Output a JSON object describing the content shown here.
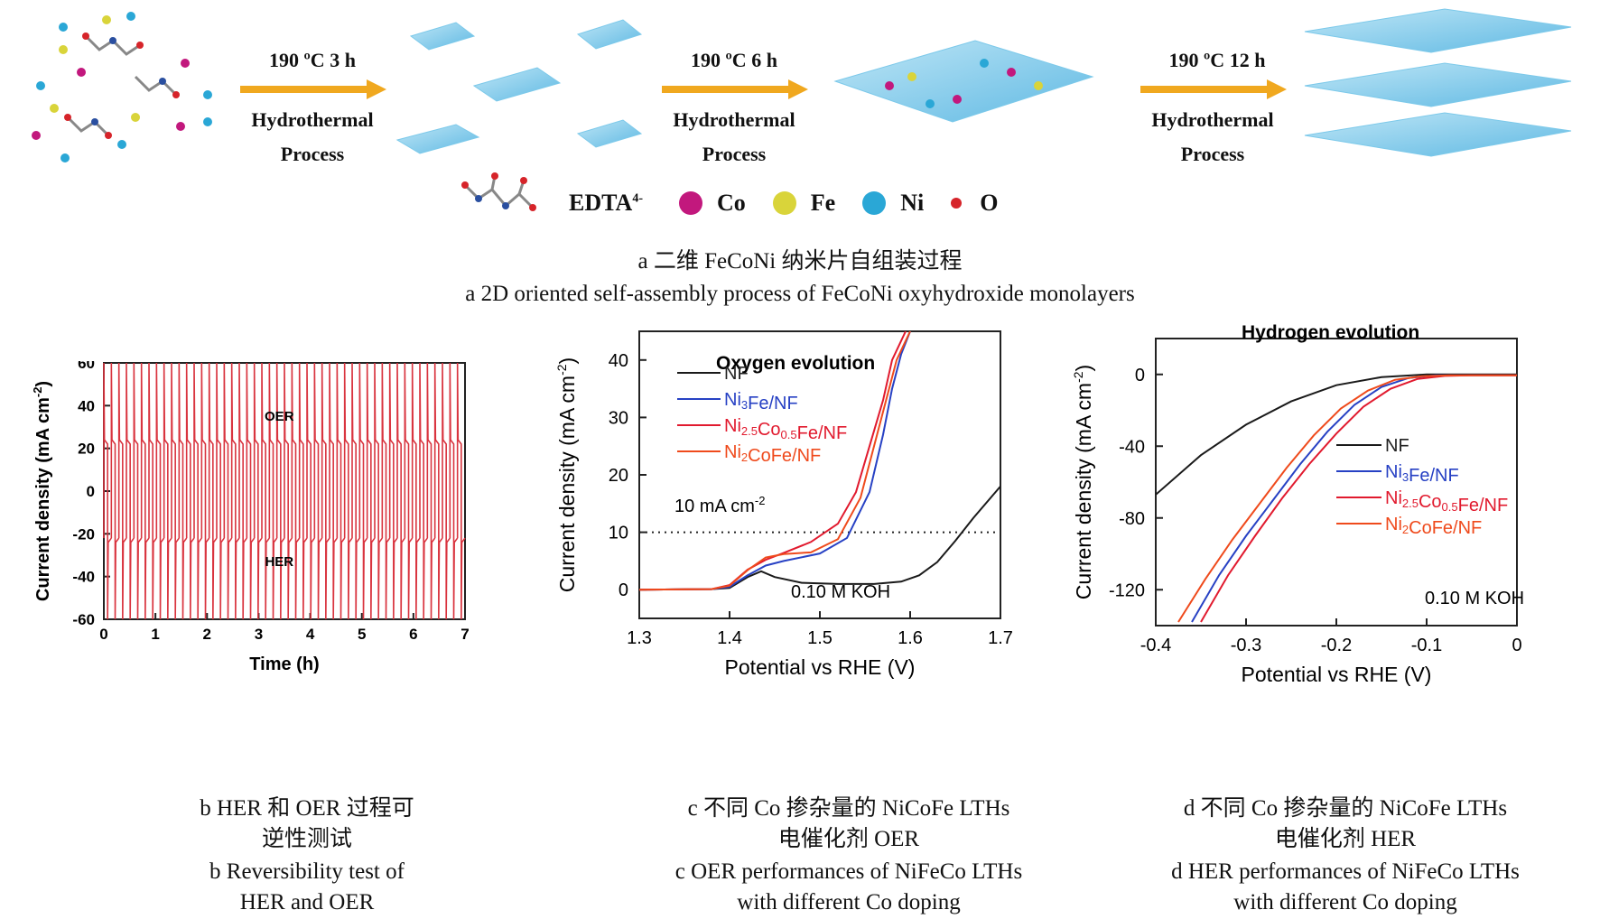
{
  "scheme": {
    "steps": [
      {
        "condition": "190 ºC  3 h",
        "line1": "Hydrothermal",
        "line2": "Process"
      },
      {
        "condition": "190 ºC  6 h",
        "line1": "Hydrothermal",
        "line2": "Process"
      },
      {
        "condition": "190 ºC  12 h",
        "line1": "Hydrothermal",
        "line2": "Process"
      }
    ],
    "legend": {
      "edta": "EDTA",
      "edta_charge": "4-",
      "items": [
        {
          "label": "Co",
          "color": "#c2187d"
        },
        {
          "label": "Fe",
          "color": "#d9d43a"
        },
        {
          "label": "Ni",
          "color": "#2aa7d6"
        },
        {
          "label": "O",
          "color": "#d6242a"
        }
      ]
    },
    "caption_cn": "a  二维 FeCoNi 纳米片自组装过程",
    "caption_en": "a  2D oriented self-assembly process of FeCoNi oxyhydroxide monolayers"
  },
  "panels": {
    "b": {
      "cap_cn1": "b  HER 和 OER 过程可",
      "cap_cn2": "逆性测试",
      "cap_en1": "b  Reversibility test of",
      "cap_en2": "HER and OER"
    },
    "c": {
      "cap_cn1": "c  不同 Co 掺杂量的 NiCoFe LTHs",
      "cap_cn2": "电催化剂 OER",
      "cap_en1": "c  OER performances of NiFeCo LTHs",
      "cap_en2": "with different Co doping"
    },
    "d": {
      "cap_cn1": "d  不同 Co 掺杂量的 NiCoFe LTHs",
      "cap_cn2": "电催化剂 HER",
      "cap_en1": "d  HER performances of NiFeCo LTHs",
      "cap_en2": "with different Co doping"
    }
  },
  "chart_data": [
    {
      "id": "b",
      "type": "line",
      "xlabel": "Time (h)",
      "ylabel": "Current density (mA cm",
      "ylabel_sup": "-2",
      "ylabel_tail": ")",
      "xlim": [
        0,
        7
      ],
      "ylim": [
        -60,
        60
      ],
      "xticks": [
        0,
        1,
        2,
        3,
        4,
        5,
        6,
        7
      ],
      "yticks": [
        -60,
        -40,
        -20,
        0,
        20,
        40,
        60
      ],
      "annotations": [
        "OER",
        "HER"
      ],
      "series": [
        {
          "color": "#d9343f",
          "cycles": 48,
          "upper": 22,
          "lower": -22,
          "spike": 60
        }
      ]
    },
    {
      "id": "c",
      "type": "line",
      "title": "Oxygen evolution",
      "xlabel": "Potential vs RHE (V)",
      "ylabel": "Current density (mA cm",
      "ylabel_sup": "-2",
      "ylabel_tail": ")",
      "xlim": [
        1.3,
        1.7
      ],
      "ylim": [
        -5,
        45
      ],
      "xticks": [
        1.3,
        1.4,
        1.5,
        1.6,
        1.7
      ],
      "yticks": [
        0,
        10,
        20,
        30,
        40
      ],
      "ref_line": {
        "y": 10,
        "label": "10 mA cm",
        "label_sup": "-2"
      },
      "note": "0.10 M KOH",
      "series": [
        {
          "name": "NF",
          "color": "#1a1a1a",
          "x": [
            1.3,
            1.38,
            1.4,
            1.42,
            1.435,
            1.45,
            1.48,
            1.52,
            1.56,
            1.59,
            1.61,
            1.63,
            1.65,
            1.67,
            1.7
          ],
          "y": [
            0,
            0.1,
            0.3,
            2.2,
            3.2,
            2.2,
            1.2,
            1.0,
            1.0,
            1.4,
            2.5,
            4.8,
            8.5,
            12.5,
            18
          ]
        },
        {
          "name": "Ni3Fe/NF",
          "color": "#2741c4",
          "x": [
            1.3,
            1.38,
            1.4,
            1.42,
            1.44,
            1.46,
            1.5,
            1.53,
            1.555,
            1.57,
            1.58,
            1.59,
            1.6
          ],
          "y": [
            0,
            0.1,
            0.5,
            2.5,
            4.2,
            5.0,
            6.3,
            9,
            17,
            27,
            35,
            41,
            45
          ]
        },
        {
          "name": "Ni2.5Co0.5Fe/NF",
          "color": "#e11a2e",
          "x": [
            1.3,
            1.38,
            1.4,
            1.42,
            1.44,
            1.46,
            1.49,
            1.52,
            1.54,
            1.555,
            1.57,
            1.58,
            1.595
          ],
          "y": [
            0,
            0.1,
            0.8,
            3.5,
            5.2,
            6.4,
            8.3,
            11.5,
            17,
            25,
            33,
            40,
            45
          ]
        },
        {
          "name": "Ni2CoFe/NF",
          "color": "#ef4a1c",
          "x": [
            1.3,
            1.38,
            1.4,
            1.42,
            1.44,
            1.46,
            1.49,
            1.52,
            1.545,
            1.56,
            1.575,
            1.585,
            1.6
          ],
          "y": [
            0,
            0.1,
            0.7,
            3.4,
            5.6,
            6.2,
            6.5,
            8.8,
            16,
            25,
            34,
            40,
            45
          ]
        }
      ]
    },
    {
      "id": "d",
      "type": "line",
      "title": "Hydrogen evolution",
      "xlabel": "Potential vs RHE (V)",
      "ylabel": "Current density (mA cm",
      "ylabel_sup": "-2",
      "ylabel_tail": ")",
      "xlim": [
        -0.4,
        0.0
      ],
      "ylim": [
        -140,
        20
      ],
      "xticks": [
        -0.4,
        -0.3,
        -0.2,
        -0.1,
        0.0
      ],
      "yticks": [
        0,
        -40,
        -80,
        -120
      ],
      "note": "0.10 M KOH",
      "series": [
        {
          "name": "NF",
          "color": "#1a1a1a",
          "x": [
            -0.4,
            -0.35,
            -0.3,
            -0.25,
            -0.2,
            -0.15,
            -0.1,
            -0.05,
            0.0
          ],
          "y": [
            -67,
            -45,
            -28,
            -15,
            -6,
            -1.5,
            0,
            0,
            0
          ]
        },
        {
          "name": "Ni3Fe/NF",
          "color": "#2741c4",
          "x": [
            -0.36,
            -0.33,
            -0.3,
            -0.27,
            -0.24,
            -0.21,
            -0.18,
            -0.15,
            -0.12,
            -0.09,
            -0.06,
            -0.03,
            0.0
          ],
          "y": [
            -138,
            -112,
            -90,
            -70,
            -50,
            -32,
            -17,
            -7,
            -2,
            -0.5,
            -0.5,
            -0.5,
            -0.5
          ]
        },
        {
          "name": "Ni2.5Co0.5Fe/NF",
          "color": "#e11a2e",
          "x": [
            -0.35,
            -0.32,
            -0.29,
            -0.26,
            -0.23,
            -0.2,
            -0.17,
            -0.14,
            -0.11,
            -0.08,
            -0.05,
            -0.02,
            0.0
          ],
          "y": [
            -138,
            -112,
            -90,
            -69,
            -50,
            -33,
            -18,
            -8,
            -2.5,
            -0.8,
            -0.5,
            -0.5,
            -0.5
          ]
        },
        {
          "name": "Ni2CoFe/NF",
          "color": "#ef4a1c",
          "x": [
            -0.375,
            -0.345,
            -0.315,
            -0.285,
            -0.255,
            -0.225,
            -0.195,
            -0.165,
            -0.135,
            -0.105,
            -0.075,
            -0.04,
            0.0
          ],
          "y": [
            -138,
            -114,
            -92,
            -72,
            -52,
            -34,
            -19,
            -9,
            -3,
            -1,
            -0.5,
            -0.5,
            -0.5
          ]
        }
      ]
    }
  ]
}
